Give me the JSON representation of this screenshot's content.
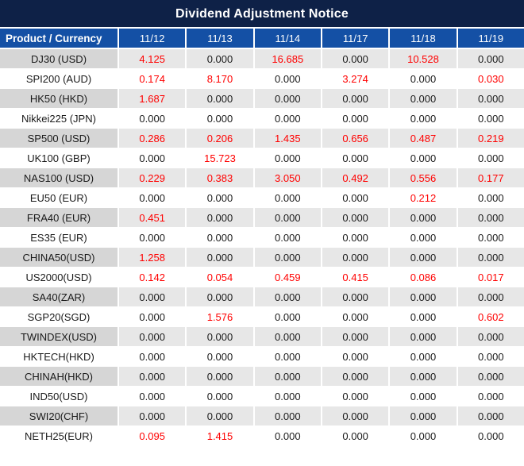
{
  "title": "Dividend Adjustment Notice",
  "colors": {
    "title_bg": "#0E2147",
    "header_bg": "#1450A5",
    "row_gray_product": "#D6D6D6",
    "row_gray_value": "#E7E7E7",
    "row_white": "#FFFFFF",
    "text_dark": "#1A1A1A",
    "value_red": "#FF0000",
    "header_text": "#FFFFFF"
  },
  "chart_data": {
    "type": "table",
    "title": "Dividend Adjustment Notice",
    "columns": [
      "Product / Currency",
      "11/12",
      "11/13",
      "11/14",
      "11/17",
      "11/18",
      "11/19"
    ],
    "rows": [
      [
        "DJ30 (USD)",
        "4.125",
        "0.000",
        "16.685",
        "0.000",
        "10.528",
        "0.000"
      ],
      [
        "SPI200 (AUD)",
        "0.174",
        "8.170",
        "0.000",
        "3.274",
        "0.000",
        "0.030"
      ],
      [
        "HK50 (HKD)",
        "1.687",
        "0.000",
        "0.000",
        "0.000",
        "0.000",
        "0.000"
      ],
      [
        "Nikkei225 (JPN)",
        "0.000",
        "0.000",
        "0.000",
        "0.000",
        "0.000",
        "0.000"
      ],
      [
        "SP500 (USD)",
        "0.286",
        "0.206",
        "1.435",
        "0.656",
        "0.487",
        "0.219"
      ],
      [
        "UK100 (GBP)",
        "0.000",
        "15.723",
        "0.000",
        "0.000",
        "0.000",
        "0.000"
      ],
      [
        "NAS100 (USD)",
        "0.229",
        "0.383",
        "3.050",
        "0.492",
        "0.556",
        "0.177"
      ],
      [
        "EU50 (EUR)",
        "0.000",
        "0.000",
        "0.000",
        "0.000",
        "0.212",
        "0.000"
      ],
      [
        "FRA40 (EUR)",
        "0.451",
        "0.000",
        "0.000",
        "0.000",
        "0.000",
        "0.000"
      ],
      [
        "ES35 (EUR)",
        "0.000",
        "0.000",
        "0.000",
        "0.000",
        "0.000",
        "0.000"
      ],
      [
        "CHINA50(USD)",
        "1.258",
        "0.000",
        "0.000",
        "0.000",
        "0.000",
        "0.000"
      ],
      [
        "US2000(USD)",
        "0.142",
        "0.054",
        "0.459",
        "0.415",
        "0.086",
        "0.017"
      ],
      [
        "SA40(ZAR)",
        "0.000",
        "0.000",
        "0.000",
        "0.000",
        "0.000",
        "0.000"
      ],
      [
        "SGP20(SGD)",
        "0.000",
        "1.576",
        "0.000",
        "0.000",
        "0.000",
        "0.602"
      ],
      [
        "TWINDEX(USD)",
        "0.000",
        "0.000",
        "0.000",
        "0.000",
        "0.000",
        "0.000"
      ],
      [
        "HKTECH(HKD)",
        "0.000",
        "0.000",
        "0.000",
        "0.000",
        "0.000",
        "0.000"
      ],
      [
        "CHINAH(HKD)",
        "0.000",
        "0.000",
        "0.000",
        "0.000",
        "0.000",
        "0.000"
      ],
      [
        "IND50(USD)",
        "0.000",
        "0.000",
        "0.000",
        "0.000",
        "0.000",
        "0.000"
      ],
      [
        "SWI20(CHF)",
        "0.000",
        "0.000",
        "0.000",
        "0.000",
        "0.000",
        "0.000"
      ],
      [
        "NETH25(EUR)",
        "0.095",
        "1.415",
        "0.000",
        "0.000",
        "0.000",
        "0.000"
      ]
    ],
    "value_color_rule": "non-zero values shown in red, zeros in black",
    "layout": "title bar dark navy, blue header row, alternating gray/white data rows"
  }
}
